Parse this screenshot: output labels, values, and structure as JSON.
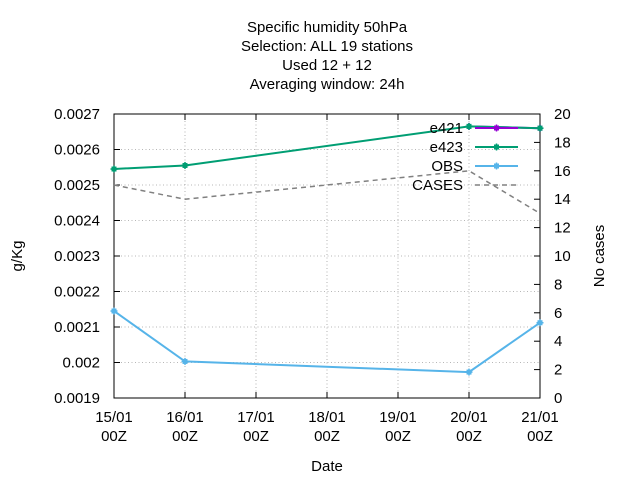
{
  "chart_data": {
    "type": "line",
    "title": [
      "Specific humidity 50hPa",
      "Selection: ALL      19 stations",
      "Used  12  + 12",
      "Averaging window: 24h"
    ],
    "xlabel": "Date",
    "ylabel": "g/Kg",
    "y2label": "No cases",
    "x_ticks": [
      {
        "top": "15/01",
        "bottom": "00Z"
      },
      {
        "top": "16/01",
        "bottom": "00Z"
      },
      {
        "top": "17/01",
        "bottom": "00Z"
      },
      {
        "top": "18/01",
        "bottom": "00Z"
      },
      {
        "top": "19/01",
        "bottom": "00Z"
      },
      {
        "top": "20/01",
        "bottom": "00Z"
      },
      {
        "top": "21/01",
        "bottom": "00Z"
      }
    ],
    "xlim": [
      0,
      6
    ],
    "ylim": [
      0.0019,
      0.0027
    ],
    "y_ticks": [
      "0.0019",
      "0.002",
      "0.0021",
      "0.0022",
      "0.0023",
      "0.0024",
      "0.0025",
      "0.0026",
      "0.0027"
    ],
    "y2lim": [
      0,
      20
    ],
    "y2_ticks": [
      "0",
      "2",
      "4",
      "6",
      "8",
      "10",
      "12",
      "14",
      "16",
      "18",
      "20"
    ],
    "grid": true,
    "legend_position": "top-right",
    "series": [
      {
        "name": "e421",
        "axis": "y",
        "color": "#9400d3",
        "style": "solid",
        "x": [
          5,
          6
        ],
        "values": [
          0.002665,
          0.00266
        ]
      },
      {
        "name": "e423",
        "axis": "y",
        "color": "#009e73",
        "style": "solid",
        "x": [
          0,
          1,
          5,
          6
        ],
        "values": [
          0.002545,
          0.002555,
          0.002665,
          0.00266
        ]
      },
      {
        "name": "OBS",
        "axis": "y",
        "color": "#56b4e9",
        "style": "solid",
        "x": [
          0,
          1,
          5,
          6
        ],
        "values": [
          0.002145,
          0.002003,
          0.001973,
          0.002112
        ]
      },
      {
        "name": "CASES",
        "axis": "y2",
        "color": "#808080",
        "style": "dashed",
        "x": [
          0,
          1,
          5,
          6
        ],
        "values": [
          15,
          14,
          16,
          13
        ]
      }
    ]
  }
}
